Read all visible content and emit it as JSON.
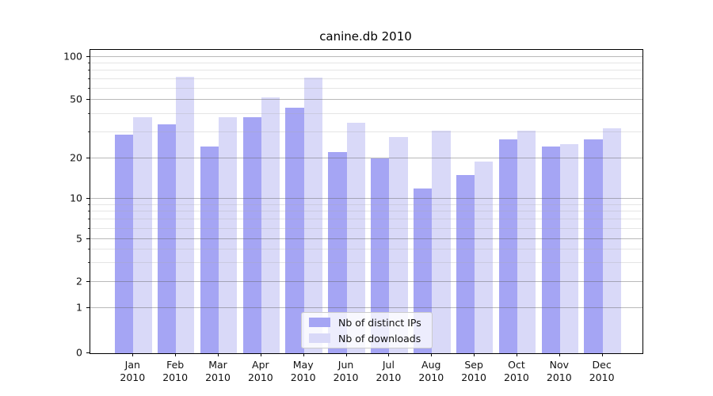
{
  "chart_data": {
    "type": "bar",
    "title": "canine.db 2010",
    "categories": [
      "Jan",
      "Feb",
      "Mar",
      "Apr",
      "May",
      "Jun",
      "Jul",
      "Aug",
      "Sep",
      "Oct",
      "Nov",
      "Dec"
    ],
    "category_year": "2010",
    "series": [
      {
        "name": "Nb of distinct IPs",
        "color": "#a5a5f4",
        "values": [
          29,
          34,
          24,
          38,
          44,
          22,
          20,
          12,
          15,
          27,
          24,
          27
        ]
      },
      {
        "name": "Nb of downloads",
        "color": "#d9d9f8",
        "values": [
          38,
          72,
          38,
          52,
          71,
          35,
          28,
          31,
          19,
          31,
          25,
          32
        ]
      }
    ],
    "yticks": [
      0,
      1,
      2,
      5,
      10,
      20,
      50,
      100
    ],
    "yticks_minor": [
      3,
      4,
      6,
      7,
      8,
      9,
      30,
      40,
      60,
      70,
      80,
      90
    ],
    "yscale": "log above 1, compressed toward 0",
    "ylim": [
      0,
      111
    ],
    "grid": "horizontal major and minor lines, drawn over bars",
    "legend_position": "lower center, inside plot"
  }
}
